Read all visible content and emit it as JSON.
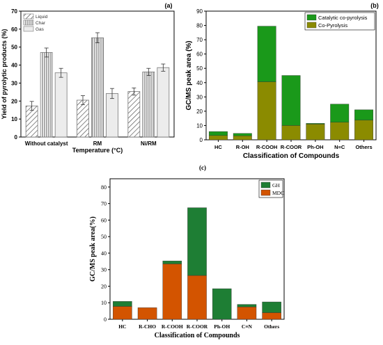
{
  "chart_data": [
    {
      "type": "bar",
      "panel_label": "(a)",
      "xlabel": "Temperature (°C)",
      "ylabel": "Yield of pyrolytic products (%)",
      "ylim": [
        0,
        70
      ],
      "yticks": [
        "0",
        "10",
        "20",
        "30",
        "40",
        "50",
        "60",
        "70"
      ],
      "categories": [
        "Without catalyst",
        "RM",
        "Ni/RM"
      ],
      "series": [
        {
          "name": "Liquid",
          "values": [
            17.3,
            20.5,
            25.3
          ],
          "errors": [
            2.5,
            2.5,
            2.0
          ],
          "pattern": "diagonal"
        },
        {
          "name": "Char",
          "values": [
            47.0,
            55.2,
            36.2
          ],
          "errors": [
            2.5,
            2.8,
            2.0
          ],
          "pattern": "vertical"
        },
        {
          "name": "Gas",
          "values": [
            35.7,
            24.2,
            38.6
          ],
          "errors": [
            2.5,
            2.8,
            2.0
          ],
          "pattern": "solid"
        }
      ],
      "legend_position": "top-left",
      "grid": false
    },
    {
      "type": "bar",
      "stacked": true,
      "panel_label": "(b)",
      "xlabel": "Classification of Compounds",
      "ylabel": "GC/MS peak area (%)",
      "ylim": [
        0,
        90
      ],
      "yticks": [
        "0",
        "10",
        "20",
        "30",
        "40",
        "50",
        "60",
        "70",
        "80",
        "90"
      ],
      "categories": [
        "HC",
        "R-OH",
        "R-COOH",
        "R-COOR",
        "Ph-OH",
        "N≡C",
        "Others"
      ],
      "series": [
        {
          "name": "Co-Pyrolysis",
          "values": [
            3.0,
            2.8,
            40.6,
            10.0,
            11.0,
            12.3,
            13.8
          ],
          "color": "#8b8b00"
        },
        {
          "name": "Catalytic co-pyrolysis",
          "values": [
            2.8,
            1.7,
            38.9,
            35.0,
            0.5,
            12.7,
            7.2
          ],
          "color": "#1a991a"
        }
      ],
      "legend_order": [
        "Catalytic co-pyrolysis",
        "Co-Pyrolysis"
      ],
      "legend_position": "top-right",
      "grid": false
    },
    {
      "type": "bar",
      "stacked": true,
      "panel_label": "(c)",
      "xlabel": "Classification of Compounds",
      "ylabel": "GC/MS peak area(%)",
      "ylim": [
        0,
        85
      ],
      "yticks": [
        "0",
        "10",
        "20",
        "30",
        "40",
        "50",
        "60",
        "70",
        "80"
      ],
      "categories": [
        "HC",
        "R-CHO",
        "R-COOH",
        "R-COOR",
        "Ph-OH",
        "C≡N",
        "Others"
      ],
      "series": [
        {
          "name": "MDC",
          "values": [
            7.8,
            7.0,
            33.5,
            26.5,
            0,
            7.5,
            4.0
          ],
          "color": "#d35400"
        },
        {
          "name": "GH",
          "values": [
            3.0,
            0,
            1.8,
            41.0,
            18.5,
            1.5,
            6.5
          ],
          "color": "#1e7e34"
        }
      ],
      "legend_order": [
        "GH",
        "MDC"
      ],
      "legend_position": "top-right",
      "grid": false
    }
  ]
}
